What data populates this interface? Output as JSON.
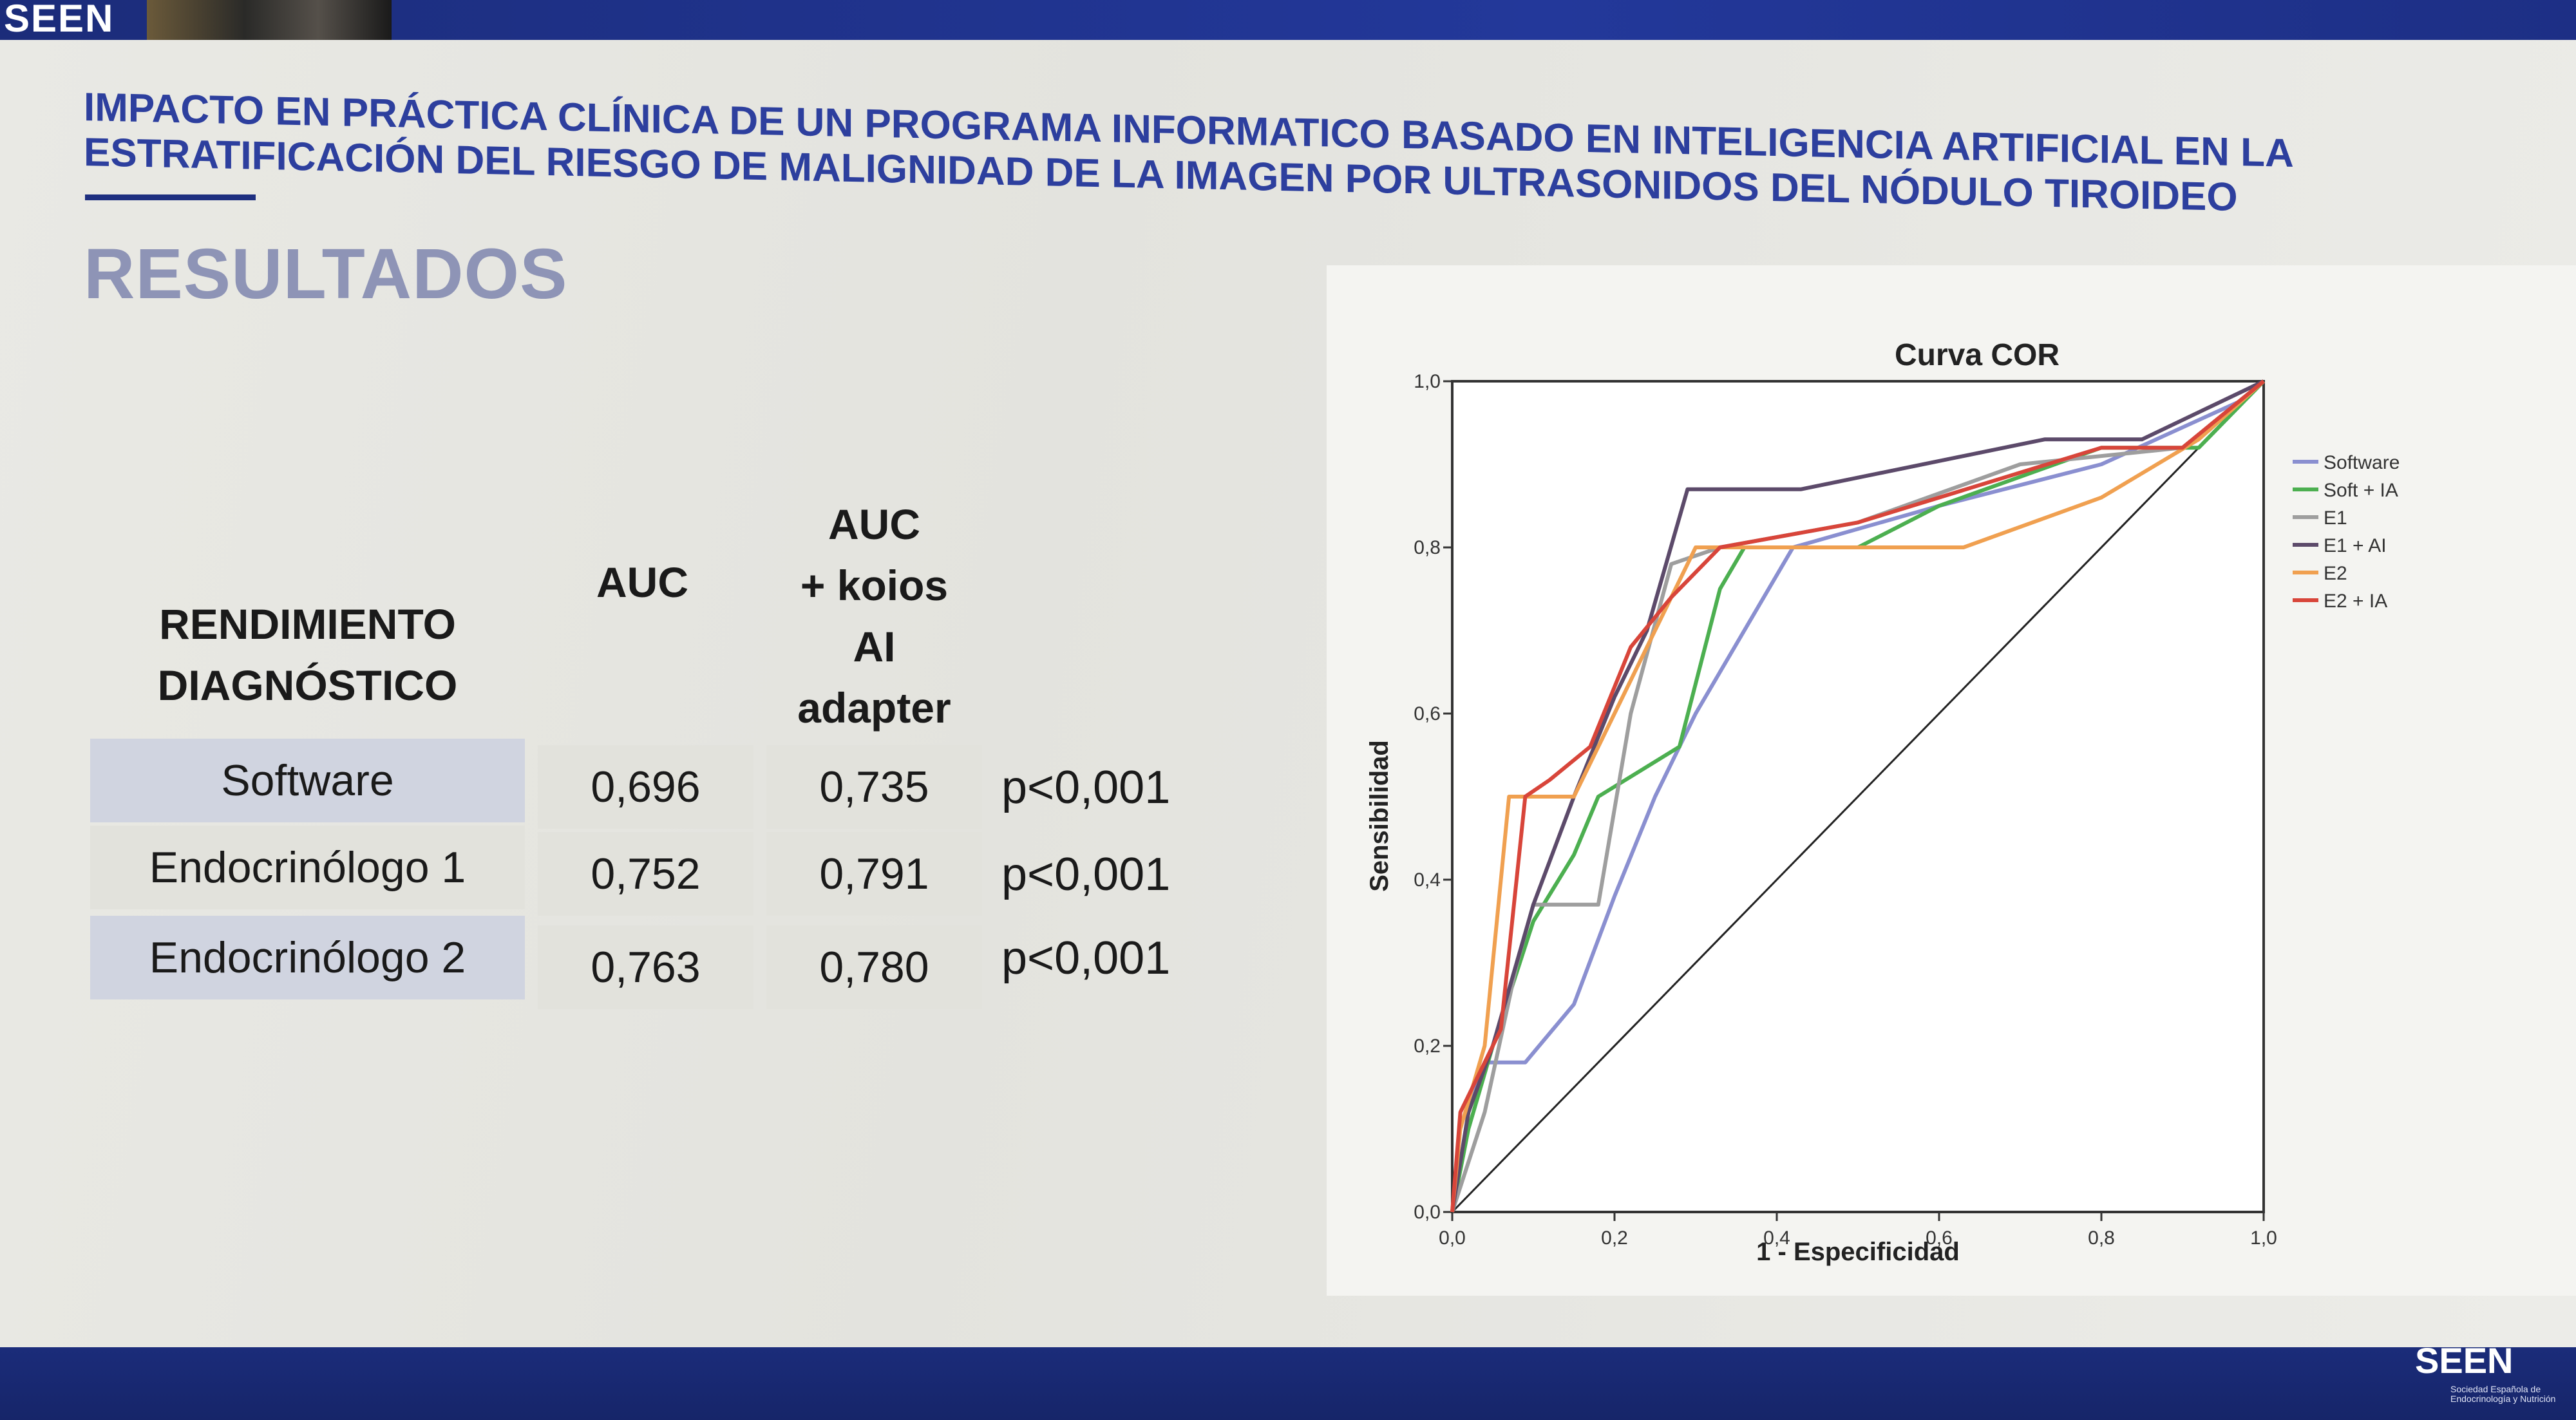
{
  "header": {
    "logo": "SEEN",
    "title_line1": "IMPACTO EN PRÁCTICA CLÍNICA DE UN PROGRAMA INFORMATICO BASADO EN INTELIGENCIA ARTIFICIAL EN LA",
    "title_line2": "ESTRATIFICACIÓN DEL RIESGO DE MALIGNIDAD DE LA IMAGEN POR ULTRASONIDOS DEL NÓDULO TIROIDEO"
  },
  "section_title": "RESULTADOS",
  "table": {
    "col_label": [
      "RENDIMIENTO",
      "DIAGNÓSTICO"
    ],
    "col_auc": "AUC",
    "col_auc_ai": [
      "AUC",
      "+ koios",
      "AI",
      "adapter"
    ],
    "rows": [
      {
        "label": "Software",
        "auc": "0,696",
        "auc_ai": "0,735",
        "p": "p<0,001"
      },
      {
        "label": "Endocrinólogo 1",
        "auc": "0,752",
        "auc_ai": "0,791",
        "p": "p<0,001"
      },
      {
        "label": "Endocrinólogo 2",
        "auc": "0,763",
        "auc_ai": "0,780",
        "p": "p<0,001"
      }
    ]
  },
  "chart_data": {
    "type": "line",
    "title": "Curva COR",
    "xlabel": "1 - Especificidad",
    "ylabel": "Sensibilidad",
    "xlim": [
      0,
      1
    ],
    "ylim": [
      0,
      1
    ],
    "x_ticks": [
      "0,0",
      "0,2",
      "0,4",
      "0,6",
      "0,8",
      "1,0"
    ],
    "y_ticks": [
      "0,0",
      "0,2",
      "0,4",
      "0,6",
      "0,8",
      "1,0"
    ],
    "legend_position": "right",
    "series": [
      {
        "name": "Software",
        "color": "#8a8fd0",
        "points": [
          [
            0,
            0
          ],
          [
            0.02,
            0.12
          ],
          [
            0.04,
            0.18
          ],
          [
            0.09,
            0.18
          ],
          [
            0.15,
            0.25
          ],
          [
            0.2,
            0.38
          ],
          [
            0.25,
            0.5
          ],
          [
            0.3,
            0.6
          ],
          [
            0.36,
            0.7
          ],
          [
            0.42,
            0.8
          ],
          [
            0.6,
            0.85
          ],
          [
            0.8,
            0.9
          ],
          [
            0.98,
            0.98
          ],
          [
            1,
            1
          ]
        ]
      },
      {
        "name": "Soft + IA",
        "color": "#4caf50",
        "points": [
          [
            0,
            0
          ],
          [
            0.02,
            0.1
          ],
          [
            0.05,
            0.2
          ],
          [
            0.1,
            0.35
          ],
          [
            0.15,
            0.43
          ],
          [
            0.18,
            0.5
          ],
          [
            0.28,
            0.56
          ],
          [
            0.33,
            0.75
          ],
          [
            0.36,
            0.8
          ],
          [
            0.5,
            0.8
          ],
          [
            0.6,
            0.85
          ],
          [
            0.8,
            0.92
          ],
          [
            0.92,
            0.92
          ],
          [
            0.95,
            0.95
          ],
          [
            1,
            1
          ]
        ]
      },
      {
        "name": "E1",
        "color": "#9e9e9e",
        "points": [
          [
            0,
            0
          ],
          [
            0.04,
            0.12
          ],
          [
            0.08,
            0.3
          ],
          [
            0.1,
            0.37
          ],
          [
            0.18,
            0.37
          ],
          [
            0.22,
            0.6
          ],
          [
            0.27,
            0.78
          ],
          [
            0.33,
            0.8
          ],
          [
            0.5,
            0.83
          ],
          [
            0.7,
            0.9
          ],
          [
            0.9,
            0.92
          ],
          [
            1,
            1
          ]
        ]
      },
      {
        "name": "E1 + AI",
        "color": "#5c4a6a",
        "points": [
          [
            0,
            0
          ],
          [
            0.02,
            0.12
          ],
          [
            0.05,
            0.2
          ],
          [
            0.1,
            0.37
          ],
          [
            0.15,
            0.5
          ],
          [
            0.2,
            0.62
          ],
          [
            0.24,
            0.7
          ],
          [
            0.29,
            0.87
          ],
          [
            0.43,
            0.87
          ],
          [
            0.73,
            0.93
          ],
          [
            0.85,
            0.93
          ],
          [
            1,
            1
          ]
        ]
      },
      {
        "name": "E2",
        "color": "#f0a050",
        "points": [
          [
            0,
            0
          ],
          [
            0.01,
            0.1
          ],
          [
            0.04,
            0.2
          ],
          [
            0.07,
            0.5
          ],
          [
            0.15,
            0.5
          ],
          [
            0.2,
            0.6
          ],
          [
            0.3,
            0.8
          ],
          [
            0.45,
            0.8
          ],
          [
            0.63,
            0.8
          ],
          [
            0.8,
            0.86
          ],
          [
            0.92,
            0.93
          ],
          [
            1,
            1
          ]
        ]
      },
      {
        "name": "E2 + IA",
        "color": "#d8453a",
        "points": [
          [
            0,
            0
          ],
          [
            0.01,
            0.12
          ],
          [
            0.04,
            0.18
          ],
          [
            0.06,
            0.22
          ],
          [
            0.09,
            0.5
          ],
          [
            0.12,
            0.52
          ],
          [
            0.17,
            0.56
          ],
          [
            0.22,
            0.68
          ],
          [
            0.27,
            0.74
          ],
          [
            0.33,
            0.8
          ],
          [
            0.5,
            0.83
          ],
          [
            0.8,
            0.92
          ],
          [
            0.9,
            0.92
          ],
          [
            1,
            1
          ]
        ]
      }
    ]
  },
  "footer": {
    "logo": "SEEN",
    "subtitle": "Sociedad Española de Endocrinología y Nutrición"
  }
}
